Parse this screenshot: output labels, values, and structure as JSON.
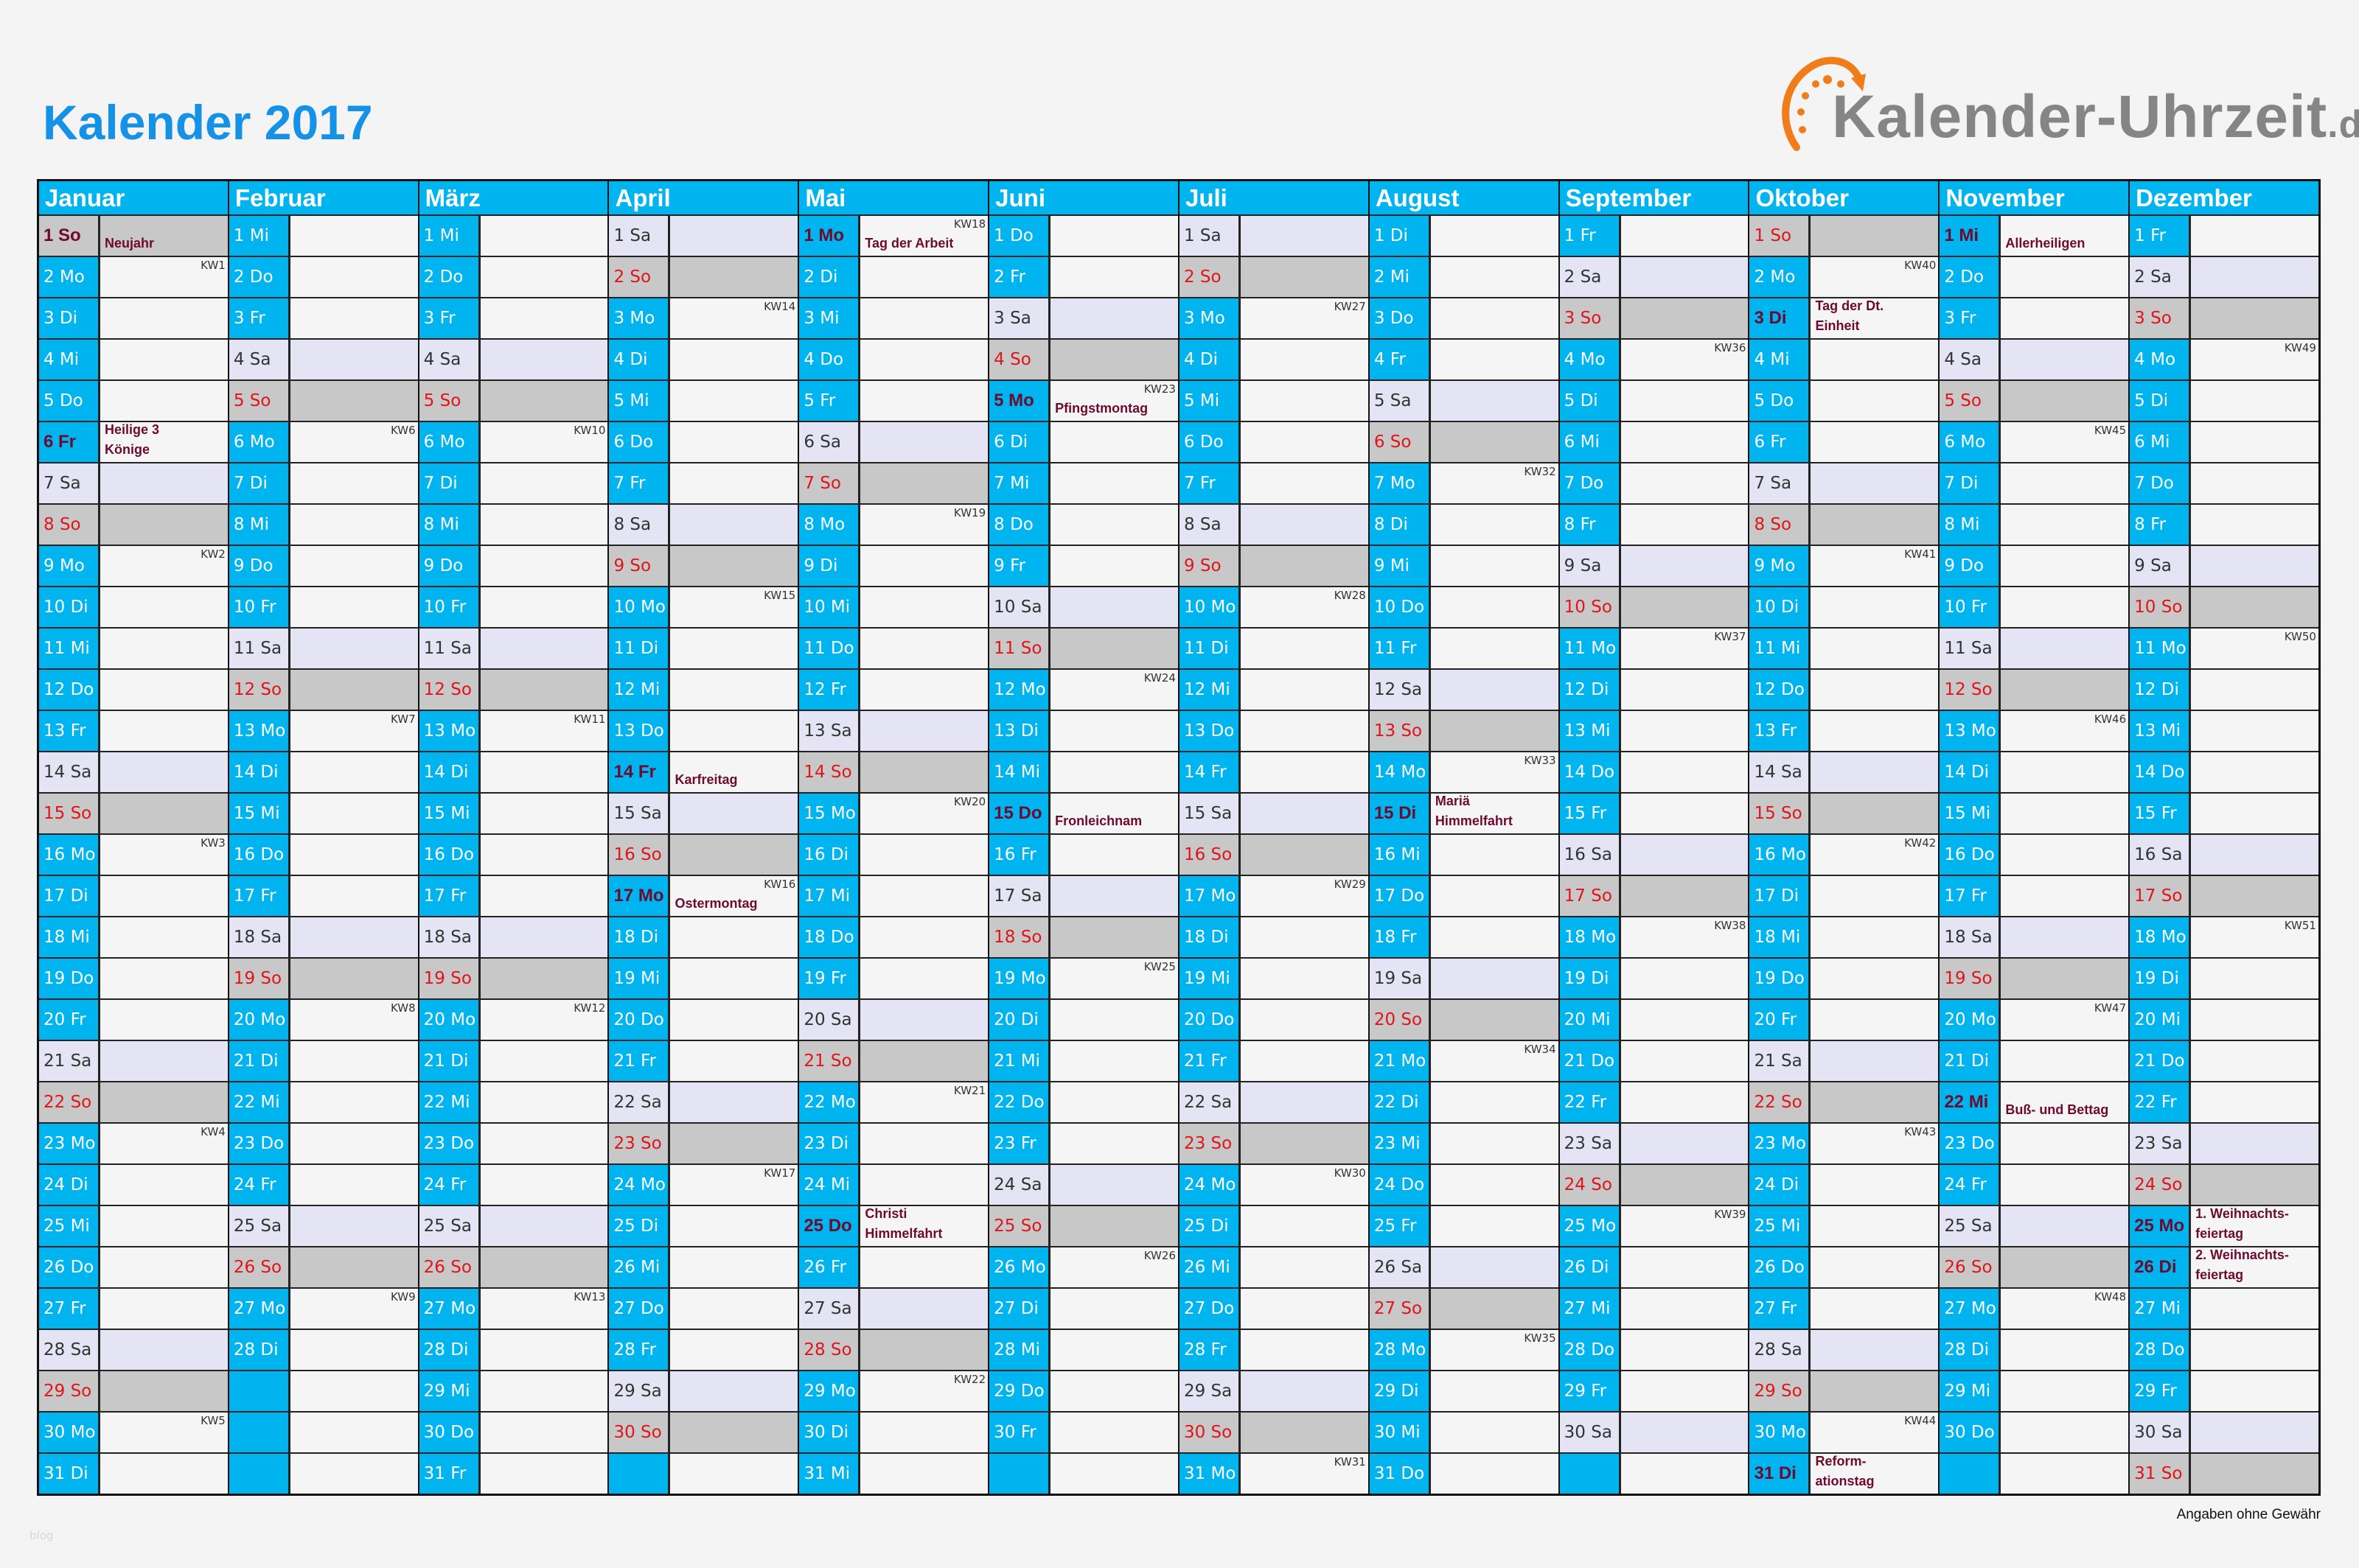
{
  "title": "Kalender 2017",
  "logo": {
    "text": "Kalender-Uhrzeit",
    "tld": ".de",
    "icon": "clock-arrow-icon",
    "colors": {
      "arc": "#f07c1a",
      "text": "#858585"
    }
  },
  "colors": {
    "weekday": "#00b4f0",
    "saturday": "#e4e4f4",
    "sunday": "#c8c8c8",
    "sunday_text": "#e0141a",
    "holiday_text": "#6d0b2e",
    "title": "#1591e6"
  },
  "disclaimer": "Angaben ohne Gewähr",
  "watermark": "blog",
  "months": [
    {
      "name": "Januar",
      "days": [
        "1 So",
        "2 Mo",
        "3 Di",
        "4 Mi",
        "5 Do",
        "6 Fr",
        "7 Sa",
        "8 So",
        "9 Mo",
        "10 Di",
        "11 Mi",
        "12 Do",
        "13 Fr",
        "14 Sa",
        "15 So",
        "16 Mo",
        "17 Di",
        "18 Mi",
        "19 Do",
        "20 Fr",
        "21 Sa",
        "22 So",
        "23 Mo",
        "24 Di",
        "25 Mi",
        "26 Do",
        "27 Fr",
        "28 Sa",
        "29 So",
        "30 Mo",
        "31 Di"
      ],
      "kw": {
        "2": "KW1",
        "9": "KW2",
        "16": "KW3",
        "23": "KW4",
        "30": "KW5"
      },
      "holidays": {
        "1": "Neujahr",
        "6": "Heilige 3\nKönige"
      }
    },
    {
      "name": "Februar",
      "days": [
        "1 Mi",
        "2 Do",
        "3 Fr",
        "4 Sa",
        "5 So",
        "6 Mo",
        "7 Di",
        "8 Mi",
        "9 Do",
        "10 Fr",
        "11 Sa",
        "12 So",
        "13 Mo",
        "14 Di",
        "15 Mi",
        "16 Do",
        "17 Fr",
        "18 Sa",
        "19 So",
        "20 Mo",
        "21 Di",
        "22 Mi",
        "23 Do",
        "24 Fr",
        "25 Sa",
        "26 So",
        "27 Mo",
        "28 Di"
      ],
      "kw": {
        "6": "KW6",
        "13": "KW7",
        "20": "KW8",
        "27": "KW9"
      },
      "holidays": {}
    },
    {
      "name": "März",
      "days": [
        "1 Mi",
        "2 Do",
        "3 Fr",
        "4 Sa",
        "5 So",
        "6 Mo",
        "7 Di",
        "8 Mi",
        "9 Do",
        "10 Fr",
        "11 Sa",
        "12 So",
        "13 Mo",
        "14 Di",
        "15 Mi",
        "16 Do",
        "17 Fr",
        "18 Sa",
        "19 So",
        "20 Mo",
        "21 Di",
        "22 Mi",
        "23 Do",
        "24 Fr",
        "25 Sa",
        "26 So",
        "27 Mo",
        "28 Di",
        "29 Mi",
        "30 Do",
        "31 Fr"
      ],
      "kw": {
        "6": "KW10",
        "13": "KW11",
        "20": "KW12",
        "27": "KW13"
      },
      "holidays": {}
    },
    {
      "name": "April",
      "days": [
        "1 Sa",
        "2 So",
        "3 Mo",
        "4 Di",
        "5 Mi",
        "6 Do",
        "7 Fr",
        "8 Sa",
        "9 So",
        "10 Mo",
        "11 Di",
        "12 Mi",
        "13 Do",
        "14 Fr",
        "15 Sa",
        "16 So",
        "17 Mo",
        "18 Di",
        "19 Mi",
        "20 Do",
        "21 Fr",
        "22 Sa",
        "23 So",
        "24 Mo",
        "25 Di",
        "26 Mi",
        "27 Do",
        "28 Fr",
        "29 Sa",
        "30 So"
      ],
      "kw": {
        "3": "KW14",
        "10": "KW15",
        "17": "KW16",
        "24": "KW17"
      },
      "holidays": {
        "14": "Karfreitag",
        "17": "Ostermontag"
      }
    },
    {
      "name": "Mai",
      "days": [
        "1 Mo",
        "2 Di",
        "3 Mi",
        "4 Do",
        "5 Fr",
        "6 Sa",
        "7 So",
        "8 Mo",
        "9 Di",
        "10 Mi",
        "11 Do",
        "12 Fr",
        "13 Sa",
        "14 So",
        "15 Mo",
        "16 Di",
        "17 Mi",
        "18 Do",
        "19 Fr",
        "20 Sa",
        "21 So",
        "22 Mo",
        "23 Di",
        "24 Mi",
        "25 Do",
        "26 Fr",
        "27 Sa",
        "28 So",
        "29 Mo",
        "30 Di",
        "31 Mi"
      ],
      "kw": {
        "1": "KW18",
        "8": "KW19",
        "15": "KW20",
        "22": "KW21",
        "29": "KW22"
      },
      "holidays": {
        "1": "Tag der Arbeit",
        "25": "Christi\nHimmelfahrt"
      }
    },
    {
      "name": "Juni",
      "days": [
        "1 Do",
        "2 Fr",
        "3 Sa",
        "4 So",
        "5 Mo",
        "6 Di",
        "7 Mi",
        "8 Do",
        "9 Fr",
        "10 Sa",
        "11 So",
        "12 Mo",
        "13 Di",
        "14 Mi",
        "15 Do",
        "16 Fr",
        "17 Sa",
        "18 So",
        "19 Mo",
        "20 Di",
        "21 Mi",
        "22 Do",
        "23 Fr",
        "24 Sa",
        "25 So",
        "26 Mo",
        "27 Di",
        "28 Mi",
        "29 Do",
        "30 Fr"
      ],
      "kw": {
        "5": "KW23",
        "12": "KW24",
        "19": "KW25",
        "26": "KW26"
      },
      "holidays": {
        "5": "Pfingstmontag",
        "15": "Fronleichnam"
      }
    },
    {
      "name": "Juli",
      "days": [
        "1 Sa",
        "2 So",
        "3 Mo",
        "4 Di",
        "5 Mi",
        "6 Do",
        "7 Fr",
        "8 Sa",
        "9 So",
        "10 Mo",
        "11 Di",
        "12 Mi",
        "13 Do",
        "14 Fr",
        "15 Sa",
        "16 So",
        "17 Mo",
        "18 Di",
        "19 Mi",
        "20 Do",
        "21 Fr",
        "22 Sa",
        "23 So",
        "24 Mo",
        "25 Di",
        "26 Mi",
        "27 Do",
        "28 Fr",
        "29 Sa",
        "30 So",
        "31 Mo"
      ],
      "kw": {
        "3": "KW27",
        "10": "KW28",
        "17": "KW29",
        "24": "KW30",
        "31": "KW31"
      },
      "holidays": {}
    },
    {
      "name": "August",
      "days": [
        "1 Di",
        "2 Mi",
        "3 Do",
        "4 Fr",
        "5 Sa",
        "6 So",
        "7 Mo",
        "8 Di",
        "9 Mi",
        "10 Do",
        "11 Fr",
        "12 Sa",
        "13 So",
        "14 Mo",
        "15 Di",
        "16 Mi",
        "17 Do",
        "18 Fr",
        "19 Sa",
        "20 So",
        "21 Mo",
        "22 Di",
        "23 Mi",
        "24 Do",
        "25 Fr",
        "26 Sa",
        "27 So",
        "28 Mo",
        "29 Di",
        "30 Mi",
        "31 Do"
      ],
      "kw": {
        "7": "KW32",
        "14": "KW33",
        "21": "KW34",
        "28": "KW35"
      },
      "holidays": {
        "15": "Mariä\nHimmelfahrt"
      }
    },
    {
      "name": "September",
      "days": [
        "1 Fr",
        "2 Sa",
        "3 So",
        "4 Mo",
        "5 Di",
        "6 Mi",
        "7 Do",
        "8 Fr",
        "9 Sa",
        "10 So",
        "11 Mo",
        "12 Di",
        "13 Mi",
        "14 Do",
        "15 Fr",
        "16 Sa",
        "17 So",
        "18 Mo",
        "19 Di",
        "20 Mi",
        "21 Do",
        "22 Fr",
        "23 Sa",
        "24 So",
        "25 Mo",
        "26 Di",
        "27 Mi",
        "28 Do",
        "29 Fr",
        "30 Sa"
      ],
      "kw": {
        "4": "KW36",
        "11": "KW37",
        "18": "KW38",
        "25": "KW39"
      },
      "holidays": {}
    },
    {
      "name": "Oktober",
      "days": [
        "1 So",
        "2 Mo",
        "3 Di",
        "4 Mi",
        "5 Do",
        "6 Fr",
        "7 Sa",
        "8 So",
        "9 Mo",
        "10 Di",
        "11 Mi",
        "12 Do",
        "13 Fr",
        "14 Sa",
        "15 So",
        "16 Mo",
        "17 Di",
        "18 Mi",
        "19 Do",
        "20 Fr",
        "21 Sa",
        "22 So",
        "23 Mo",
        "24 Di",
        "25 Mi",
        "26 Do",
        "27 Fr",
        "28 Sa",
        "29 So",
        "30 Mo",
        "31 Di"
      ],
      "kw": {
        "2": "KW40",
        "9": "KW41",
        "16": "KW42",
        "23": "KW43",
        "30": "KW44"
      },
      "holidays": {
        "3": "Tag der Dt.\nEinheit",
        "31": "Reform-\nationstag"
      }
    },
    {
      "name": "November",
      "days": [
        "1 Mi",
        "2 Do",
        "3 Fr",
        "4 Sa",
        "5 So",
        "6 Mo",
        "7 Di",
        "8 Mi",
        "9 Do",
        "10 Fr",
        "11 Sa",
        "12 So",
        "13 Mo",
        "14 Di",
        "15 Mi",
        "16 Do",
        "17 Fr",
        "18 Sa",
        "19 So",
        "20 Mo",
        "21 Di",
        "22 Mi",
        "23 Do",
        "24 Fr",
        "25 Sa",
        "26 So",
        "27 Mo",
        "28 Di",
        "29 Mi",
        "30 Do"
      ],
      "kw": {
        "6": "KW45",
        "13": "KW46",
        "20": "KW47",
        "27": "KW48"
      },
      "holidays": {
        "1": "Allerheiligen",
        "22": "Buß- und Bettag"
      }
    },
    {
      "name": "Dezember",
      "days": [
        "1 Fr",
        "2 Sa",
        "3 So",
        "4 Mo",
        "5 Di",
        "6 Mi",
        "7 Do",
        "8 Fr",
        "9 Sa",
        "10 So",
        "11 Mo",
        "12 Di",
        "13 Mi",
        "14 Do",
        "15 Fr",
        "16 Sa",
        "17 So",
        "18 Mo",
        "19 Di",
        "20 Mi",
        "21 Do",
        "22 Fr",
        "23 Sa",
        "24 So",
        "25 Mo",
        "26 Di",
        "27 Mi",
        "28 Do",
        "29 Fr",
        "30 Sa",
        "31 So"
      ],
      "kw": {
        "4": "KW49",
        "11": "KW50",
        "18": "KW51"
      },
      "holidays": {
        "25": "1. Weihnachts-\nfeiertag",
        "26": "2. Weihnachts-\nfeiertag"
      }
    }
  ]
}
